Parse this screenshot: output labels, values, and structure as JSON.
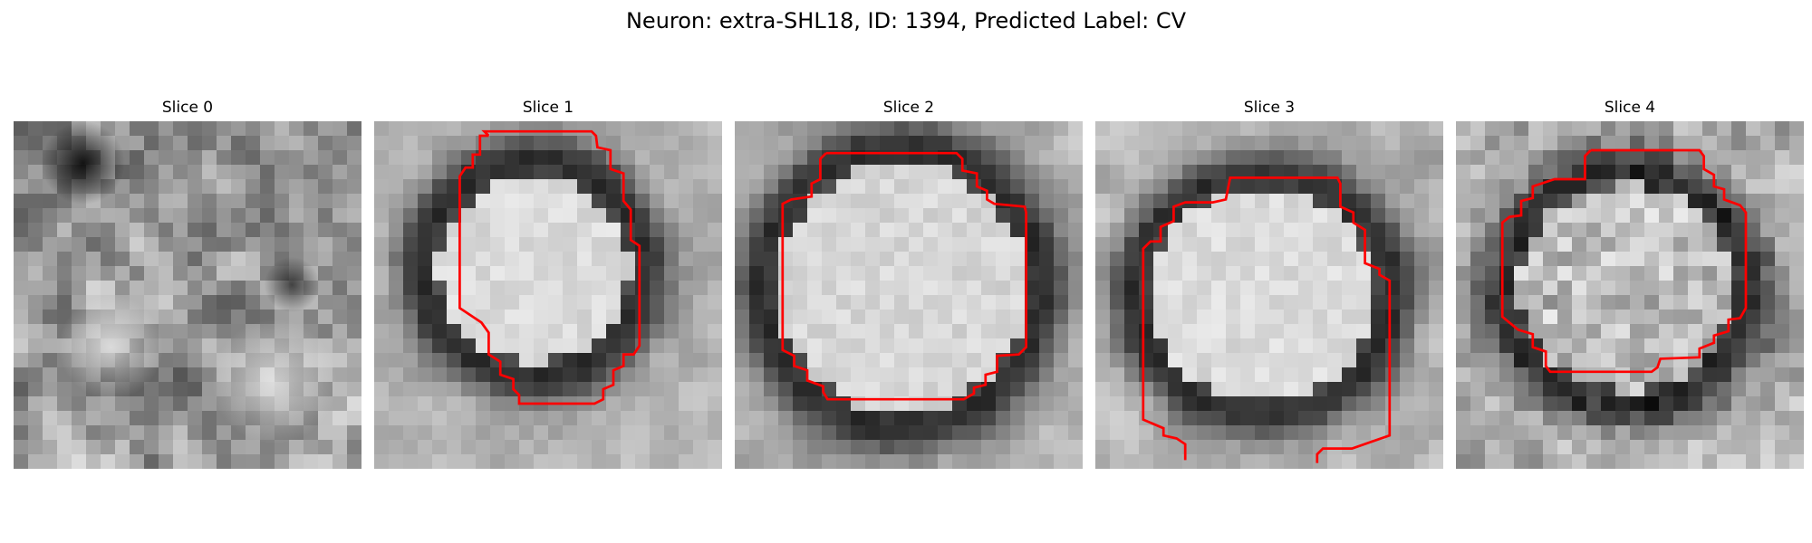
{
  "figure": {
    "title": "Neuron: extra-SHL18, ID: 1394, Predicted Label: CV"
  },
  "slices": [
    {
      "title": "Slice 0",
      "contour": false
    },
    {
      "title": "Slice 1",
      "contour": true
    },
    {
      "title": "Slice 2",
      "contour": true
    },
    {
      "title": "Slice 3",
      "contour": true
    },
    {
      "title": "Slice 4",
      "contour": true
    }
  ],
  "colors": {
    "contour": "#ff0000",
    "background": "#ffffff"
  }
}
